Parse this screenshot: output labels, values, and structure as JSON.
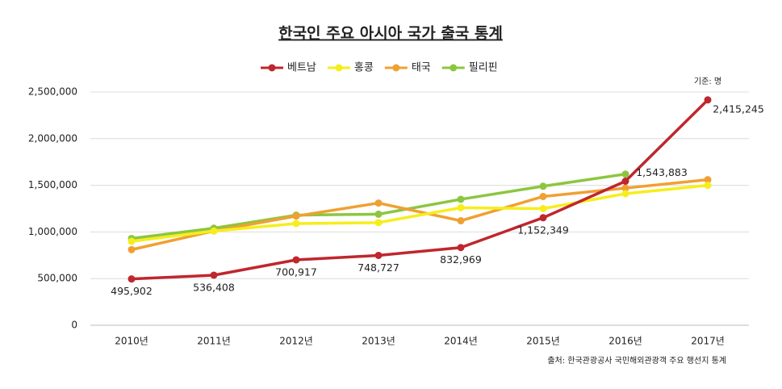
{
  "chart_data": {
    "type": "line",
    "title": "한국인 주요 아시아 국가 출국 통계",
    "annotations": [
      "기준: 명",
      "출처: 한국관광공사 국민해외관광객 주요 행선지 통계"
    ],
    "categories": [
      "2010년",
      "2011년",
      "2012년",
      "2013년",
      "2014년",
      "2015년",
      "2016년",
      "2017년"
    ],
    "series": [
      {
        "name": "베트남",
        "color": "#c0262d",
        "values": [
          495902,
          536408,
          700917,
          748727,
          832969,
          1152349,
          1543883,
          2415245
        ],
        "value_labels": [
          "495,902",
          "536,408",
          "700,917",
          "748,727",
          "832,969",
          "1,152,349",
          "1,543,883",
          "2,415,245"
        ]
      },
      {
        "name": "홍콩",
        "color": "#f5ee1c",
        "values": [
          900000,
          1010000,
          1090000,
          1100000,
          1260000,
          1250000,
          1410000,
          1500000
        ]
      },
      {
        "name": "태국",
        "color": "#f0a032",
        "values": [
          810000,
          1010000,
          1170000,
          1310000,
          1120000,
          1380000,
          1470000,
          1560000
        ]
      },
      {
        "name": "필리핀",
        "color": "#8cc63f",
        "values": [
          930000,
          1040000,
          1180000,
          1190000,
          1350000,
          1490000,
          1620000,
          null
        ]
      }
    ],
    "ylim": [
      0,
      2500000
    ],
    "yticks": [
      0,
      {
        "value": 500000,
        "label": "500,000"
      },
      {
        "value": 1000000,
        "label": "1,000,000"
      },
      {
        "value": 1500000,
        "label": "1,500,000"
      },
      {
        "value": 2000000,
        "label": "2,000,000"
      },
      {
        "value": 2500000,
        "label": "2,500,000"
      }
    ],
    "grid": true,
    "legend": "top"
  }
}
